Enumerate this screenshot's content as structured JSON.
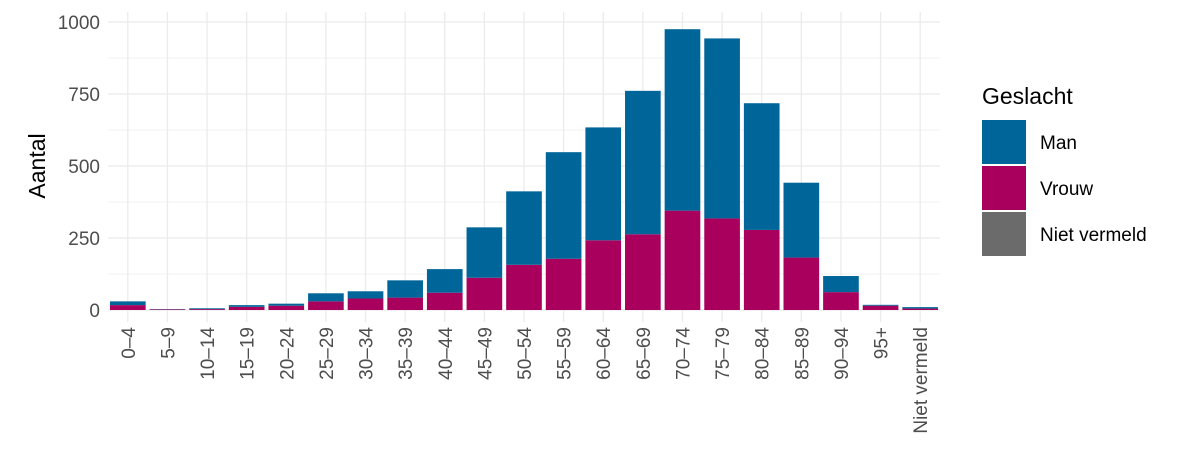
{
  "chart_data": {
    "type": "bar",
    "stacked": true,
    "title": "",
    "xlabel": "",
    "ylabel": "Aantal",
    "ylim": [
      0,
      1000
    ],
    "yticks": [
      0,
      250,
      500,
      750,
      1000
    ],
    "grid": true,
    "legend_title": "Geslacht",
    "legend_position": "right",
    "categories": [
      "0–4",
      "5–9",
      "10–14",
      "15–19",
      "20–24",
      "25–29",
      "30–34",
      "35–39",
      "40–44",
      "45–49",
      "50–54",
      "55–59",
      "60–64",
      "65–69",
      "70–74",
      "75–79",
      "80–84",
      "85–89",
      "90–94",
      "95+",
      "Niet vermeld"
    ],
    "series": [
      {
        "name": "Vrouw",
        "color": "#A8005C",
        "values": [
          17,
          2,
          3,
          11,
          15,
          30,
          40,
          43,
          60,
          112,
          157,
          178,
          242,
          263,
          345,
          318,
          278,
          182,
          62,
          15,
          5
        ]
      },
      {
        "name": "Man",
        "color": "#006699",
        "values": [
          13,
          1,
          3,
          6,
          7,
          28,
          25,
          60,
          82,
          175,
          255,
          370,
          392,
          498,
          630,
          625,
          440,
          260,
          56,
          3,
          5
        ]
      },
      {
        "name": "Niet vermeld",
        "color": "#6b6b6b",
        "values": [
          0,
          0,
          0,
          0,
          0,
          0,
          0,
          0,
          0,
          0,
          0,
          0,
          0,
          0,
          0,
          0,
          0,
          0,
          0,
          0,
          0
        ]
      }
    ],
    "legend_order": [
      "Man",
      "Vrouw",
      "Niet vermeld"
    ]
  }
}
